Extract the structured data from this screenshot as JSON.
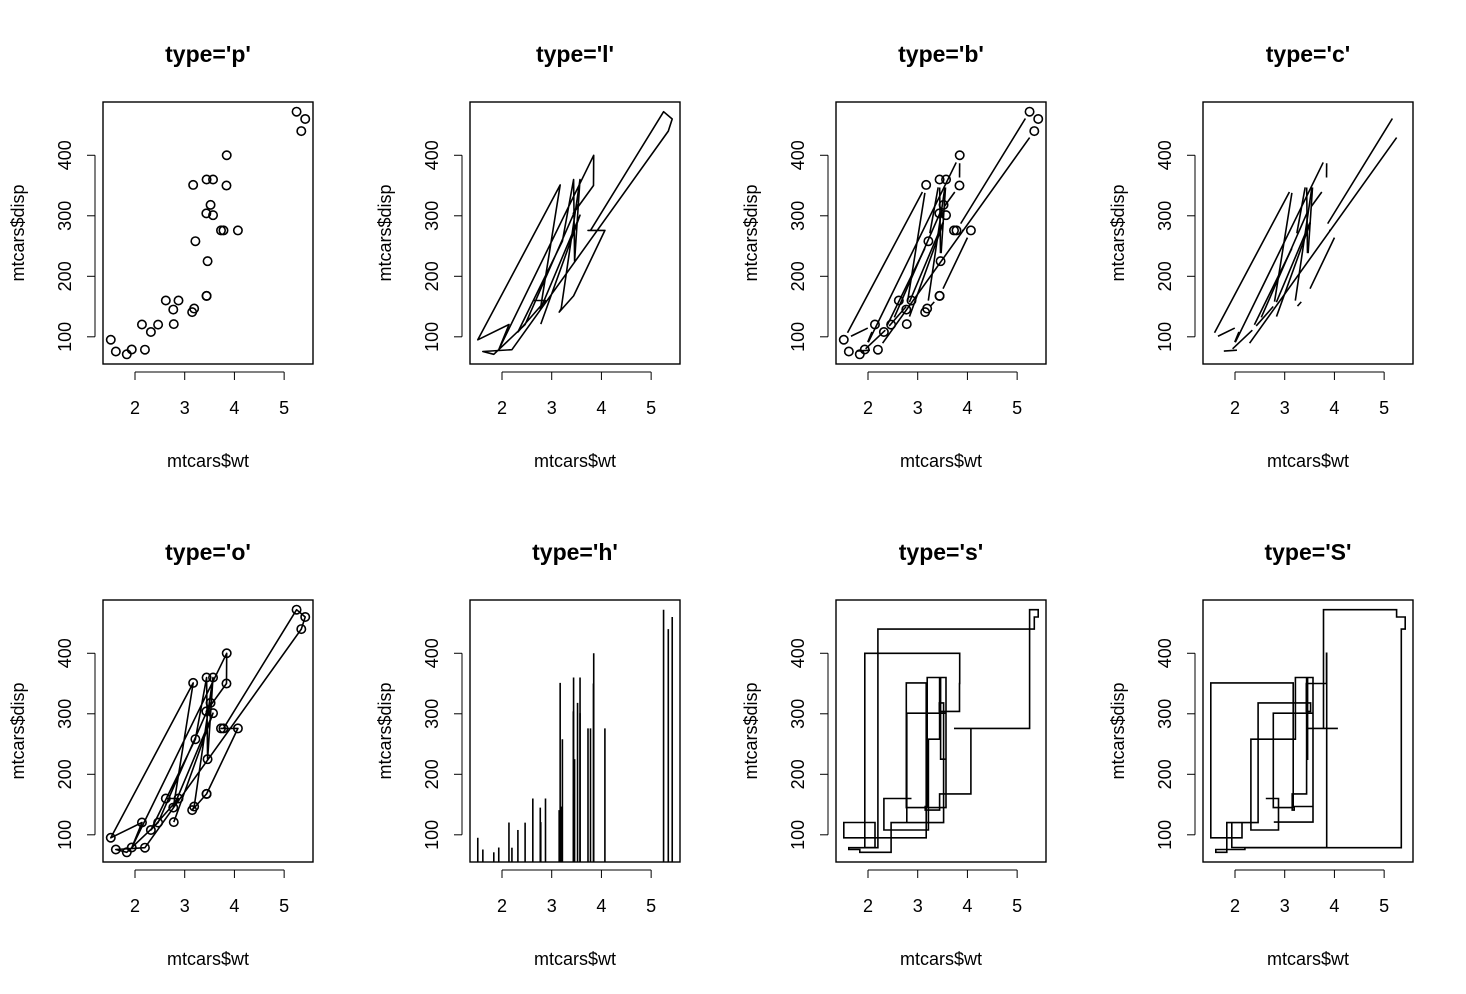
{
  "figure": {
    "background": "#ffffff",
    "ink": "#000000"
  },
  "chart_data": {
    "type": "scatter",
    "source": "mtcars",
    "x": [
      2.62,
      2.875,
      2.32,
      3.215,
      3.44,
      3.46,
      3.57,
      3.19,
      3.15,
      3.44,
      3.44,
      4.07,
      3.73,
      3.78,
      5.25,
      5.424,
      5.345,
      2.2,
      1.615,
      1.835,
      2.465,
      3.52,
      3.435,
      3.84,
      3.845,
      1.935,
      2.14,
      1.513,
      3.17,
      2.77,
      3.57,
      2.78
    ],
    "y": [
      160,
      160,
      108,
      258,
      360,
      225,
      360,
      146.7,
      140.8,
      167.6,
      167.6,
      275.8,
      275.8,
      275.8,
      472,
      460,
      440,
      78.7,
      75.7,
      71.1,
      120.1,
      318,
      304,
      350,
      400,
      79,
      120.3,
      95.1,
      351,
      145,
      301,
      121
    ],
    "xlabel": "mtcars$wt",
    "ylabel": "mtcars$disp",
    "xlim": [
      1.513,
      5.424
    ],
    "ylim": [
      71.1,
      472
    ],
    "xticks": [
      2,
      3,
      4,
      5
    ],
    "yticks": [
      100,
      200,
      300,
      400
    ],
    "panels": [
      {
        "title": "type='p'",
        "type": "p"
      },
      {
        "title": "type='l'",
        "type": "l"
      },
      {
        "title": "type='b'",
        "type": "b"
      },
      {
        "title": "type='c'",
        "type": "c"
      },
      {
        "title": "type='o'",
        "type": "o"
      },
      {
        "title": "type='h'",
        "type": "h"
      },
      {
        "title": "type='s'",
        "type": "s"
      },
      {
        "title": "type='S'",
        "type": "S"
      }
    ]
  }
}
